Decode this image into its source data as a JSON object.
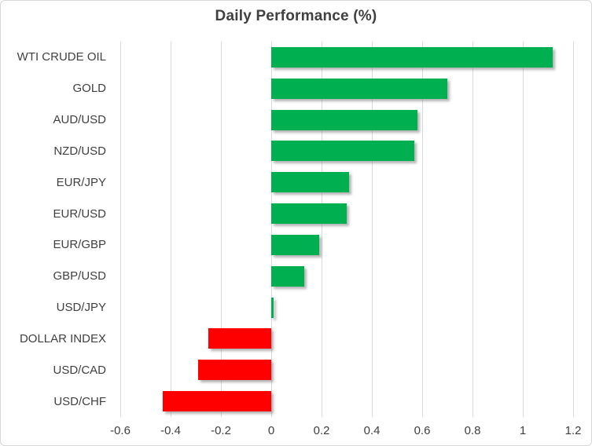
{
  "chart_data": {
    "type": "bar",
    "orientation": "horizontal",
    "title": "Daily Performance (%)",
    "xlabel": "",
    "ylabel": "",
    "categories": [
      "WTI CRUDE OIL",
      "GOLD",
      "AUD/USD",
      "NZD/USD",
      "EUR/JPY",
      "EUR/USD",
      "EUR/GBP",
      "GBP/USD",
      "USD/JPY",
      "DOLLAR INDEX",
      "USD/CAD",
      "USD/CHF"
    ],
    "values": [
      1.12,
      0.7,
      0.58,
      0.57,
      0.31,
      0.3,
      0.19,
      0.13,
      0.01,
      -0.25,
      -0.29,
      -0.43
    ],
    "xlim": [
      -0.6,
      1.2
    ],
    "tick_values": [
      -0.6,
      -0.4,
      -0.2,
      0,
      0.2,
      0.4,
      0.6,
      0.8,
      1,
      1.2
    ],
    "tick_labels": [
      "-0.6",
      "-0.4",
      "-0.2",
      "0",
      "0.2",
      "0.4",
      "0.6",
      "0.8",
      "1",
      "1.2"
    ],
    "grid": true,
    "legend": false,
    "positive_color": "#00B050",
    "negative_color": "#FF0000",
    "gridline_color": "#D9D9D9",
    "text_color": "#404040"
  }
}
